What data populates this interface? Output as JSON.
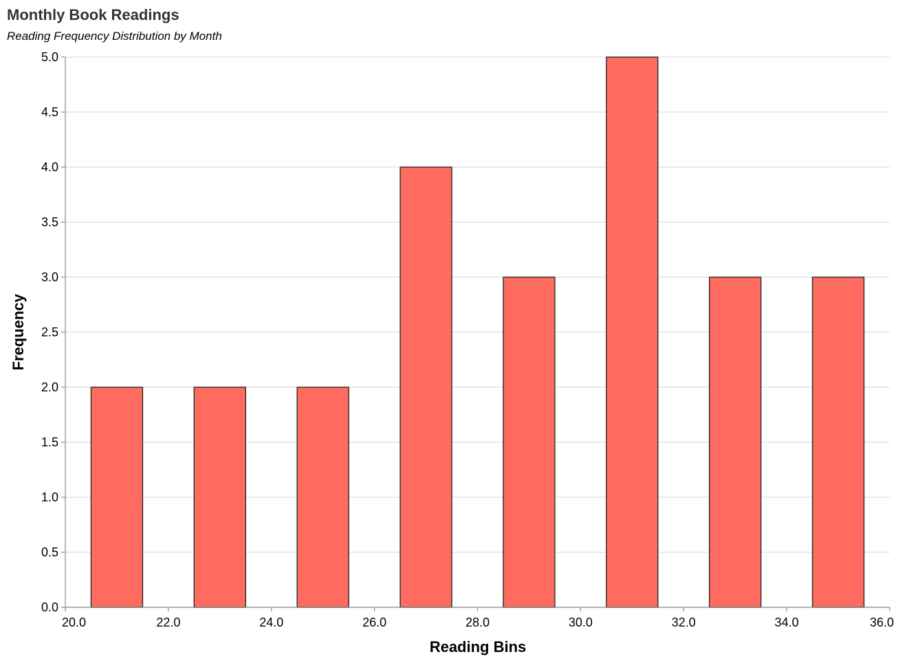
{
  "chart_data": {
    "type": "bar",
    "title": "Monthly Book Readings",
    "subtitle": "Reading Frequency Distribution by Month",
    "xlabel": "Reading Bins",
    "ylabel": "Frequency",
    "xlim": [
      20,
      36
    ],
    "ylim": [
      0,
      5
    ],
    "x_ticks": [
      20,
      22,
      24,
      26,
      28,
      30,
      32,
      34,
      36
    ],
    "x_tick_labels": [
      "20.0",
      "22.0",
      "24.0",
      "26.0",
      "28.0",
      "30.0",
      "32.0",
      "34.0",
      "36.0"
    ],
    "y_ticks": [
      0,
      0.5,
      1,
      1.5,
      2,
      2.5,
      3,
      3.5,
      4,
      4.5,
      5
    ],
    "y_tick_labels": [
      "0.0",
      "0.5",
      "1.0",
      "1.5",
      "2.0",
      "2.5",
      "3.0",
      "3.5",
      "4.0",
      "4.5",
      "5.0"
    ],
    "bins": [
      {
        "x_start": 20.5,
        "x_end": 21.5,
        "value": 2
      },
      {
        "x_start": 22.5,
        "x_end": 23.5,
        "value": 2
      },
      {
        "x_start": 24.5,
        "x_end": 25.5,
        "value": 2
      },
      {
        "x_start": 26.5,
        "x_end": 27.5,
        "value": 4
      },
      {
        "x_start": 28.5,
        "x_end": 29.5,
        "value": 3
      },
      {
        "x_start": 30.5,
        "x_end": 31.5,
        "value": 5
      },
      {
        "x_start": 32.5,
        "x_end": 33.5,
        "value": 3
      },
      {
        "x_start": 34.5,
        "x_end": 35.5,
        "value": 3
      }
    ],
    "bar_color": "#ff6b5e",
    "bar_stroke": "#333333",
    "grid": true
  }
}
